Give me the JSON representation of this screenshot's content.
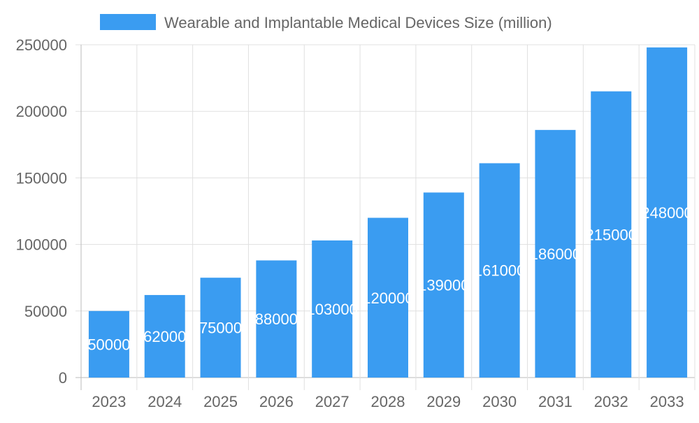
{
  "chart_data": {
    "type": "bar",
    "title": "",
    "xlabel": "",
    "ylabel": "",
    "categories": [
      "2023",
      "2024",
      "2025",
      "2026",
      "2027",
      "2028",
      "2029",
      "2030",
      "2031",
      "2032",
      "2033"
    ],
    "series": [
      {
        "name": "Wearable and Implantable Medical Devices Size (million)",
        "values": [
          50000,
          62000,
          75000,
          88000,
          103000,
          120000,
          139000,
          161000,
          186000,
          215000,
          248000
        ],
        "color": "#3a9cf1"
      }
    ],
    "ylim": [
      0,
      250000
    ],
    "yticks": [
      0,
      50000,
      100000,
      150000,
      200000,
      250000
    ],
    "grid": true,
    "legend": "top",
    "data_labels": true
  }
}
